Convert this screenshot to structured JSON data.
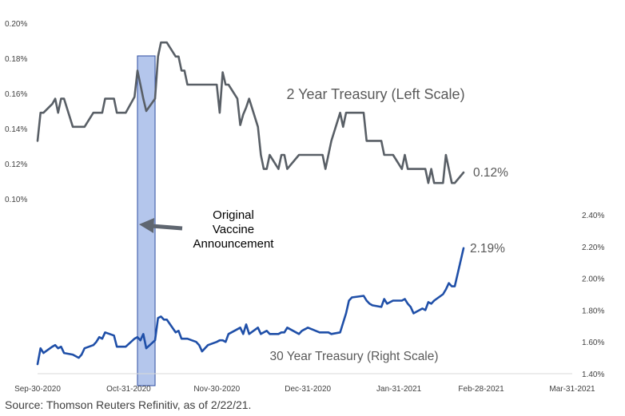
{
  "chart_data": {
    "type": "line",
    "x_ticks": [
      "Sep-30-2020",
      "Oct-31-2020",
      "Nov-30-2020",
      "Dec-31-2020",
      "Jan-31-2021",
      "Feb-28-2021",
      "Mar-31-2021"
    ],
    "y_left_ticks": [
      "0.10%",
      "0.12%",
      "0.14%",
      "0.16%",
      "0.18%",
      "0.20%"
    ],
    "y_left_range": [
      0.1,
      0.2
    ],
    "y_right_ticks": [
      "1.40%",
      "1.60%",
      "1.80%",
      "2.00%",
      "2.20%",
      "2.40%"
    ],
    "y_right_range": [
      1.4,
      2.4
    ],
    "series": [
      {
        "name": "2 Year Treasury (Left Scale)",
        "axis": "left",
        "color": "#595f66",
        "end_label": "0.12%",
        "points": [
          [
            "2020-09-30",
            0.133
          ],
          [
            "2020-10-01",
            0.149
          ],
          [
            "2020-10-02",
            0.149
          ],
          [
            "2020-10-05",
            0.154
          ],
          [
            "2020-10-06",
            0.157
          ],
          [
            "2020-10-07",
            0.149
          ],
          [
            "2020-10-08",
            0.157
          ],
          [
            "2020-10-09",
            0.157
          ],
          [
            "2020-10-12",
            0.141
          ],
          [
            "2020-10-13",
            0.141
          ],
          [
            "2020-10-14",
            0.141
          ],
          [
            "2020-10-15",
            0.141
          ],
          [
            "2020-10-16",
            0.141
          ],
          [
            "2020-10-19",
            0.149
          ],
          [
            "2020-10-20",
            0.149
          ],
          [
            "2020-10-21",
            0.149
          ],
          [
            "2020-10-22",
            0.149
          ],
          [
            "2020-10-23",
            0.157
          ],
          [
            "2020-10-26",
            0.157
          ],
          [
            "2020-10-27",
            0.149
          ],
          [
            "2020-10-28",
            0.149
          ],
          [
            "2020-10-29",
            0.149
          ],
          [
            "2020-10-30",
            0.149
          ],
          [
            "2020-11-02",
            0.158
          ],
          [
            "2020-11-03",
            0.173
          ],
          [
            "2020-11-04",
            0.165
          ],
          [
            "2020-11-05",
            0.157
          ],
          [
            "2020-11-06",
            0.15
          ],
          [
            "2020-11-09",
            0.157
          ],
          [
            "2020-11-10",
            0.181
          ],
          [
            "2020-11-11",
            0.189
          ],
          [
            "2020-11-12",
            0.189
          ],
          [
            "2020-11-13",
            0.189
          ],
          [
            "2020-11-16",
            0.181
          ],
          [
            "2020-11-17",
            0.181
          ],
          [
            "2020-11-18",
            0.173
          ],
          [
            "2020-11-19",
            0.173
          ],
          [
            "2020-11-20",
            0.165
          ],
          [
            "2020-11-23",
            0.165
          ],
          [
            "2020-11-24",
            0.165
          ],
          [
            "2020-11-25",
            0.165
          ],
          [
            "2020-11-27",
            0.165
          ],
          [
            "2020-11-30",
            0.165
          ],
          [
            "2020-12-01",
            0.149
          ],
          [
            "2020-12-02",
            0.172
          ],
          [
            "2020-12-03",
            0.165
          ],
          [
            "2020-12-04",
            0.165
          ],
          [
            "2020-12-07",
            0.157
          ],
          [
            "2020-12-08",
            0.142
          ],
          [
            "2020-12-09",
            0.148
          ],
          [
            "2020-12-10",
            0.152
          ],
          [
            "2020-12-11",
            0.157
          ],
          [
            "2020-12-14",
            0.141
          ],
          [
            "2020-12-15",
            0.125
          ],
          [
            "2020-12-16",
            0.117
          ],
          [
            "2020-12-17",
            0.117
          ],
          [
            "2020-12-18",
            0.125
          ],
          [
            "2020-12-21",
            0.117
          ],
          [
            "2020-12-22",
            0.125
          ],
          [
            "2020-12-23",
            0.125
          ],
          [
            "2020-12-24",
            0.117
          ],
          [
            "2020-12-28",
            0.125
          ],
          [
            "2020-12-29",
            0.125
          ],
          [
            "2020-12-30",
            0.125
          ],
          [
            "2020-12-31",
            0.125
          ],
          [
            "2021-01-04",
            0.125
          ],
          [
            "2021-01-05",
            0.125
          ],
          [
            "2021-01-06",
            0.117
          ],
          [
            "2021-01-07",
            0.125
          ],
          [
            "2021-01-08",
            0.133
          ],
          [
            "2021-01-11",
            0.149
          ],
          [
            "2021-01-12",
            0.141
          ],
          [
            "2021-01-13",
            0.149
          ],
          [
            "2021-01-14",
            0.149
          ],
          [
            "2021-01-15",
            0.149
          ],
          [
            "2021-01-19",
            0.149
          ],
          [
            "2021-01-20",
            0.133
          ],
          [
            "2021-01-21",
            0.133
          ],
          [
            "2021-01-22",
            0.133
          ],
          [
            "2021-01-25",
            0.133
          ],
          [
            "2021-01-26",
            0.125
          ],
          [
            "2021-01-27",
            0.125
          ],
          [
            "2021-01-28",
            0.125
          ],
          [
            "2021-01-29",
            0.125
          ],
          [
            "2021-02-01",
            0.117
          ],
          [
            "2021-02-02",
            0.125
          ],
          [
            "2021-02-03",
            0.117
          ],
          [
            "2021-02-04",
            0.117
          ],
          [
            "2021-02-05",
            0.117
          ],
          [
            "2021-02-08",
            0.117
          ],
          [
            "2021-02-09",
            0.117
          ],
          [
            "2021-02-10",
            0.109
          ],
          [
            "2021-02-11",
            0.117
          ],
          [
            "2021-02-12",
            0.109
          ],
          [
            "2021-02-15",
            0.109
          ],
          [
            "2021-02-16",
            0.125
          ],
          [
            "2021-02-17",
            0.117
          ],
          [
            "2021-02-18",
            0.109
          ],
          [
            "2021-02-19",
            0.109
          ],
          [
            "2021-02-22",
            0.115
          ]
        ]
      },
      {
        "name": "30 Year Treasury (Right Scale)",
        "axis": "right",
        "color": "#1f4fa8",
        "end_label": "2.19%",
        "points": [
          [
            "2020-09-30",
            1.46
          ],
          [
            "2020-10-01",
            1.56
          ],
          [
            "2020-10-02",
            1.53
          ],
          [
            "2020-10-05",
            1.57
          ],
          [
            "2020-10-06",
            1.58
          ],
          [
            "2020-10-07",
            1.56
          ],
          [
            "2020-10-08",
            1.57
          ],
          [
            "2020-10-09",
            1.53
          ],
          [
            "2020-10-12",
            1.52
          ],
          [
            "2020-10-13",
            1.51
          ],
          [
            "2020-10-14",
            1.5
          ],
          [
            "2020-10-15",
            1.52
          ],
          [
            "2020-10-16",
            1.56
          ],
          [
            "2020-10-19",
            1.58
          ],
          [
            "2020-10-20",
            1.6
          ],
          [
            "2020-10-21",
            1.63
          ],
          [
            "2020-10-22",
            1.62
          ],
          [
            "2020-10-23",
            1.66
          ],
          [
            "2020-10-26",
            1.64
          ],
          [
            "2020-10-27",
            1.57
          ],
          [
            "2020-10-28",
            1.57
          ],
          [
            "2020-10-29",
            1.57
          ],
          [
            "2020-10-30",
            1.57
          ],
          [
            "2020-11-02",
            1.62
          ],
          [
            "2020-11-03",
            1.63
          ],
          [
            "2020-11-04",
            1.61
          ],
          [
            "2020-11-05",
            1.65
          ],
          [
            "2020-11-06",
            1.56
          ],
          [
            "2020-11-09",
            1.61
          ],
          [
            "2020-11-10",
            1.75
          ],
          [
            "2020-11-11",
            1.76
          ],
          [
            "2020-11-12",
            1.74
          ],
          [
            "2020-11-13",
            1.74
          ],
          [
            "2020-11-16",
            1.66
          ],
          [
            "2020-11-17",
            1.67
          ],
          [
            "2020-11-18",
            1.62
          ],
          [
            "2020-11-19",
            1.62
          ],
          [
            "2020-11-20",
            1.62
          ],
          [
            "2020-11-23",
            1.6
          ],
          [
            "2020-11-24",
            1.58
          ],
          [
            "2020-11-25",
            1.54
          ],
          [
            "2020-11-27",
            1.58
          ],
          [
            "2020-11-30",
            1.6
          ],
          [
            "2020-12-01",
            1.61
          ],
          [
            "2020-12-02",
            1.61
          ],
          [
            "2020-12-03",
            1.6
          ],
          [
            "2020-12-04",
            1.65
          ],
          [
            "2020-12-07",
            1.68
          ],
          [
            "2020-12-08",
            1.69
          ],
          [
            "2020-12-09",
            1.65
          ],
          [
            "2020-12-10",
            1.71
          ],
          [
            "2020-12-11",
            1.65
          ],
          [
            "2020-12-14",
            1.69
          ],
          [
            "2020-12-15",
            1.65
          ],
          [
            "2020-12-16",
            1.66
          ],
          [
            "2020-12-17",
            1.67
          ],
          [
            "2020-12-18",
            1.65
          ],
          [
            "2020-12-21",
            1.65
          ],
          [
            "2020-12-22",
            1.66
          ],
          [
            "2020-12-23",
            1.66
          ],
          [
            "2020-12-24",
            1.69
          ],
          [
            "2020-12-28",
            1.65
          ],
          [
            "2020-12-29",
            1.67
          ],
          [
            "2020-12-30",
            1.68
          ],
          [
            "2020-12-31",
            1.69
          ],
          [
            "2021-01-04",
            1.66
          ],
          [
            "2021-01-05",
            1.66
          ],
          [
            "2021-01-06",
            1.66
          ],
          [
            "2021-01-07",
            1.66
          ],
          [
            "2021-01-08",
            1.65
          ],
          [
            "2021-01-11",
            1.66
          ],
          [
            "2021-01-12",
            1.72
          ],
          [
            "2021-01-13",
            1.78
          ],
          [
            "2021-01-14",
            1.86
          ],
          [
            "2021-01-15",
            1.88
          ],
          [
            "2021-01-19",
            1.89
          ],
          [
            "2021-01-20",
            1.86
          ],
          [
            "2021-01-21",
            1.84
          ],
          [
            "2021-01-22",
            1.83
          ],
          [
            "2021-01-25",
            1.82
          ],
          [
            "2021-01-26",
            1.87
          ],
          [
            "2021-01-27",
            1.84
          ],
          [
            "2021-01-28",
            1.85
          ],
          [
            "2021-01-29",
            1.86
          ],
          [
            "2021-02-01",
            1.86
          ],
          [
            "2021-02-02",
            1.87
          ],
          [
            "2021-02-03",
            1.84
          ],
          [
            "2021-02-04",
            1.82
          ],
          [
            "2021-02-05",
            1.78
          ],
          [
            "2021-02-08",
            1.81
          ],
          [
            "2021-02-09",
            1.8
          ],
          [
            "2021-02-10",
            1.85
          ],
          [
            "2021-02-11",
            1.84
          ],
          [
            "2021-02-12",
            1.86
          ],
          [
            "2021-02-15",
            1.9
          ],
          [
            "2021-02-16",
            1.93
          ],
          [
            "2021-02-17",
            1.97
          ],
          [
            "2021-02-18",
            1.95
          ],
          [
            "2021-02-19",
            1.95
          ],
          [
            "2021-02-22",
            2.19
          ]
        ]
      }
    ],
    "highlight_band": {
      "from": "2020-11-03",
      "to": "2020-11-09",
      "color": "#b4c6ec",
      "stroke": "#2f4ea0"
    },
    "annotation": {
      "lines": [
        "Original",
        "Vaccine",
        "Announcement"
      ],
      "arrow": "left"
    },
    "grid": false,
    "legend": "inline-labels"
  },
  "footer": {
    "source": "Source: Thomson Reuters Refinitiv, as of 2/22/21."
  }
}
